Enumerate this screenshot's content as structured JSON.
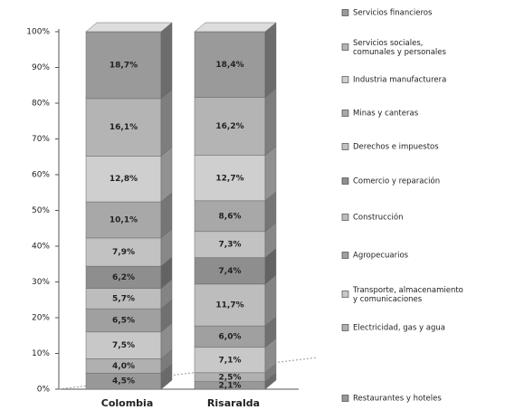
{
  "chart_data": {
    "type": "stacked_bar_3d",
    "categories": [
      "Colombia",
      "Risaralda"
    ],
    "series": [
      {
        "name": "Servicios financieros",
        "color": "#9a9a9a",
        "values": [
          18.7,
          18.4
        ],
        "value_labels": [
          "18,7%",
          "18,4%"
        ]
      },
      {
        "name": "Servicios sociales, comunales y personales",
        "color": "#b4b4b4",
        "values": [
          16.1,
          16.2
        ],
        "value_labels": [
          "16,1%",
          "16,2%"
        ]
      },
      {
        "name": "Industria manufacturera",
        "color": "#cfcfcf",
        "values": [
          12.8,
          12.7
        ],
        "value_labels": [
          "12,8%",
          "12,7%"
        ]
      },
      {
        "name": "Minas y canteras",
        "color": "#a8a8a8",
        "values": [
          10.1,
          8.6
        ],
        "value_labels": [
          "10,1%",
          "8,6%"
        ]
      },
      {
        "name": "Derechos e impuestos",
        "color": "#c2c2c2",
        "values": [
          7.9,
          7.3
        ],
        "value_labels": [
          "7,9%",
          "7,3%"
        ]
      },
      {
        "name": "Comercio y reparación",
        "color": "#8e8e8e",
        "values": [
          6.2,
          7.4
        ],
        "value_labels": [
          "6,2%",
          "7,4%"
        ]
      },
      {
        "name": "Construcción",
        "color": "#bdbdbd",
        "values": [
          5.7,
          11.7
        ],
        "value_labels": [
          "5,7%",
          "11,7%"
        ]
      },
      {
        "name": "Agropecuarios",
        "color": "#a0a0a0",
        "values": [
          6.5,
          6.0
        ],
        "value_labels": [
          "6,5%",
          "6,0%"
        ]
      },
      {
        "name": "Transporte, almacenamiento y comunicaciones",
        "color": "#c8c8c8",
        "values": [
          7.5,
          7.1
        ],
        "value_labels": [
          "7,5%",
          "7,1%"
        ]
      },
      {
        "name": "Electricidad, gas y agua",
        "color": "#b0b0b0",
        "values": [
          4.0,
          2.5
        ],
        "value_labels": [
          "4,0%",
          "2,5%"
        ]
      },
      {
        "name": "Restaurantes y hoteles",
        "color": "#989898",
        "values": [
          4.5,
          2.1
        ],
        "value_labels": [
          "4,5%",
          "2,1%"
        ]
      }
    ],
    "ylim": [
      0,
      100
    ],
    "yticks": [
      {
        "value": 0,
        "label": "0%"
      },
      {
        "value": 10,
        "label": "10%"
      },
      {
        "value": 20,
        "label": "20%"
      },
      {
        "value": 30,
        "label": "30%"
      },
      {
        "value": 40,
        "label": "40%"
      },
      {
        "value": 50,
        "label": "50%"
      },
      {
        "value": 60,
        "label": "60%"
      },
      {
        "value": 70,
        "label": "70%"
      },
      {
        "value": 80,
        "label": "80%"
      },
      {
        "value": 90,
        "label": "90%"
      },
      {
        "value": 100,
        "label": "100%"
      }
    ],
    "legend": "right"
  }
}
